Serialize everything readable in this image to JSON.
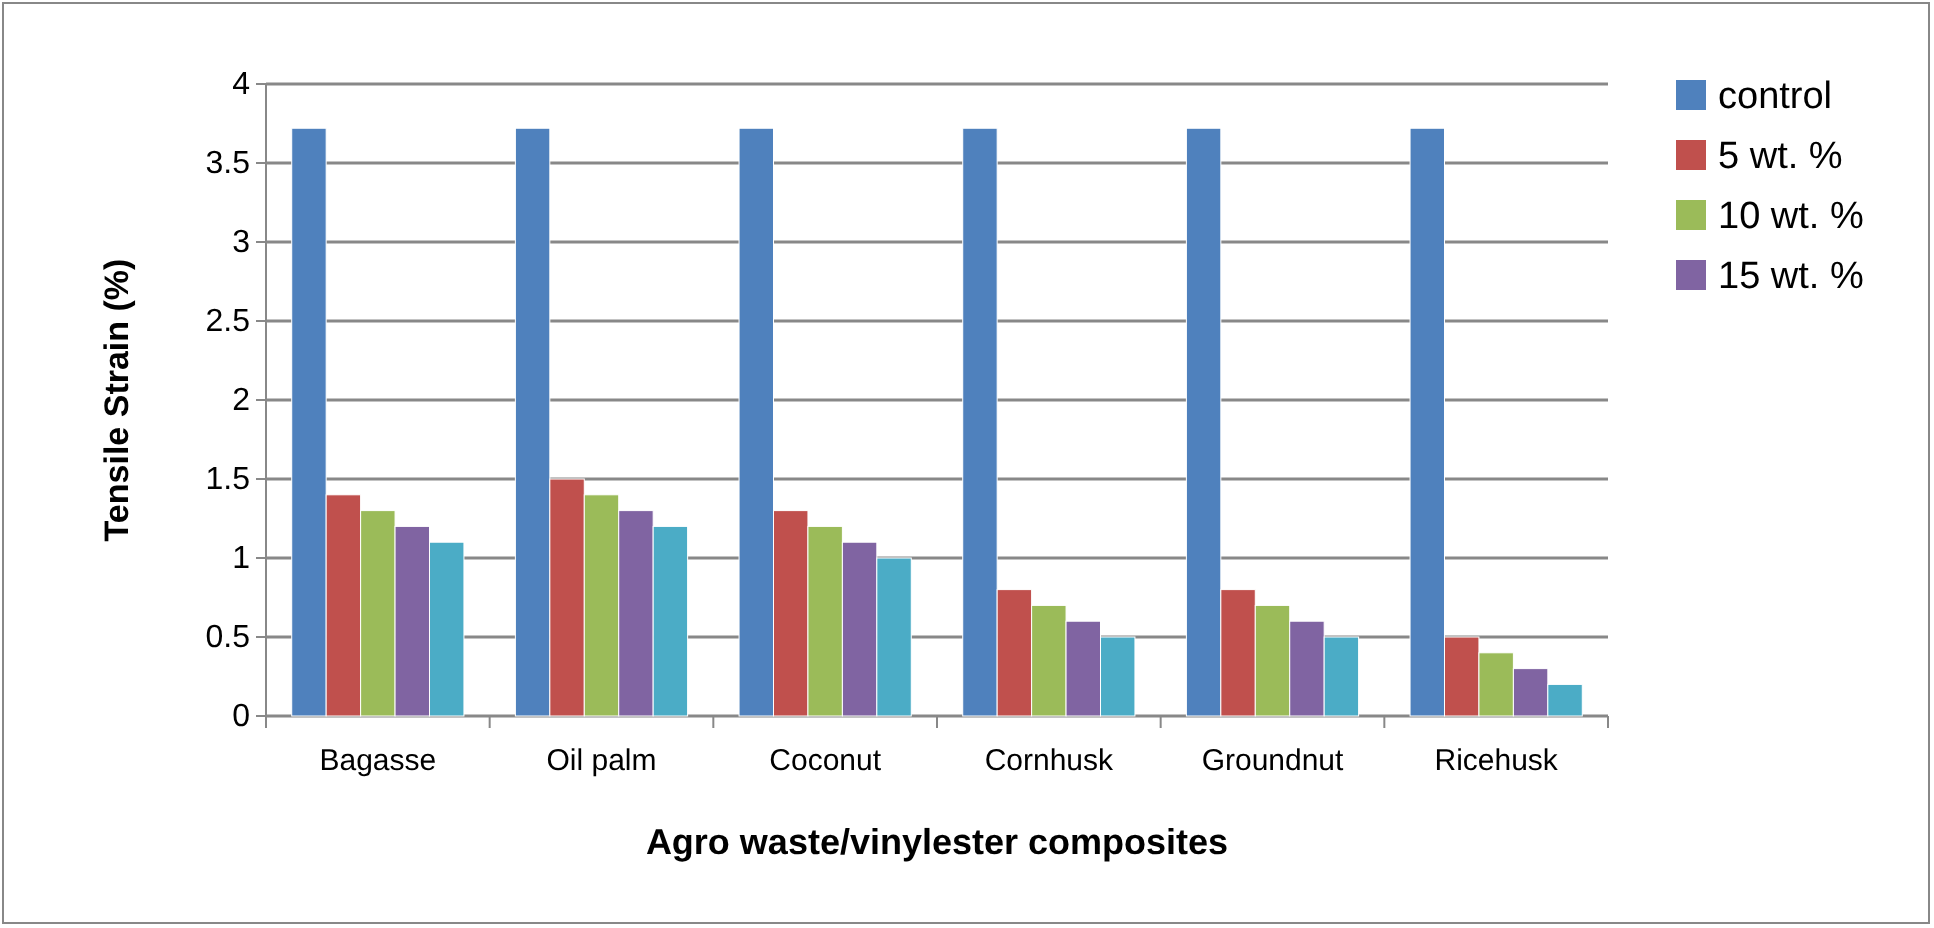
{
  "chart_data": {
    "type": "bar",
    "xlabel": "Agro waste/vinylester composites",
    "ylabel": "Tensile Strain (%)",
    "categories": [
      "Bagasse",
      "Oil palm",
      "Coconut",
      "Cornhusk",
      "Groundnut",
      "Ricehusk"
    ],
    "series": [
      {
        "name": "control",
        "color": "#4f81bd",
        "values": [
          3.72,
          3.72,
          3.72,
          3.72,
          3.72,
          3.72
        ]
      },
      {
        "name": "5 wt. %",
        "color": "#c0504d",
        "values": [
          1.4,
          1.5,
          1.3,
          0.8,
          0.8,
          0.5
        ]
      },
      {
        "name": "10 wt. %",
        "color": "#9bbb59",
        "values": [
          1.3,
          1.4,
          1.2,
          0.7,
          0.7,
          0.4
        ]
      },
      {
        "name": "15 wt. %",
        "color": "#8064a2",
        "values": [
          1.2,
          1.3,
          1.1,
          0.6,
          0.6,
          0.3
        ]
      },
      {
        "color": "#4bacc6",
        "values": [
          1.1,
          1.2,
          1.0,
          0.5,
          0.5,
          0.2
        ]
      }
    ],
    "ylim": [
      0,
      4
    ],
    "yticks": [
      0,
      0.5,
      1,
      1.5,
      2,
      2.5,
      3,
      3.5,
      4
    ],
    "grid": "y",
    "legend": "right"
  }
}
